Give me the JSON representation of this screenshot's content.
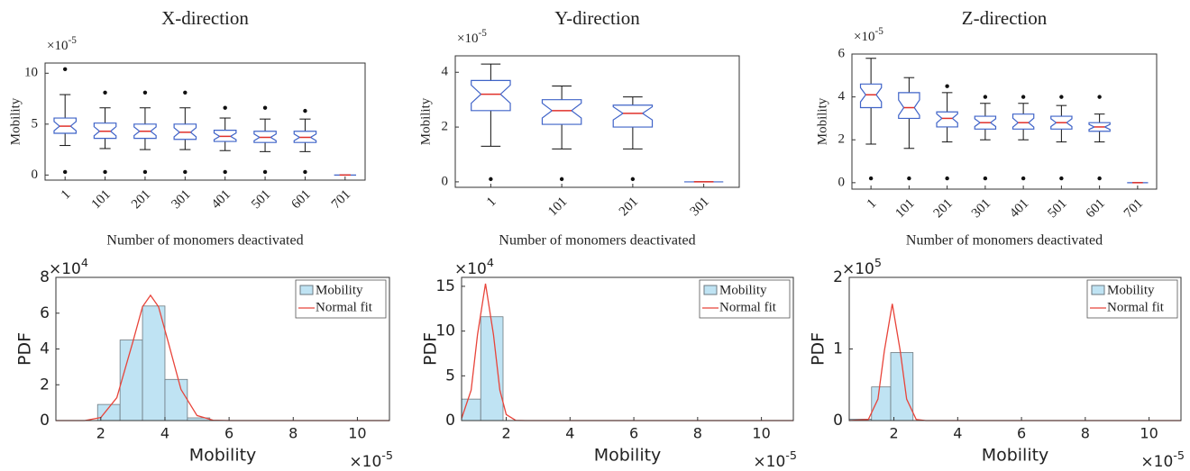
{
  "chart_data": [
    {
      "type": "box",
      "title": "X-direction",
      "xlabel": "Number of monomers deactivated",
      "ylabel": "Mobility",
      "y_scale_label": {
        "base": "×10",
        "exponent": "-5"
      },
      "categories": [
        "1",
        "101",
        "201",
        "301",
        "401",
        "501",
        "601",
        "701"
      ],
      "ylim": [
        -0.5,
        11
      ],
      "yticks": [
        0,
        5,
        10
      ],
      "boxes": [
        {
          "low": 2.9,
          "q1": 4.1,
          "median": 4.8,
          "q3": 5.6,
          "high": 7.9,
          "outliers": [
            10.4,
            0.3
          ]
        },
        {
          "low": 2.6,
          "q1": 3.6,
          "median": 4.3,
          "q3": 5.1,
          "high": 6.6,
          "outliers": [
            8.1,
            0.3
          ]
        },
        {
          "low": 2.5,
          "q1": 3.6,
          "median": 4.3,
          "q3": 5.0,
          "high": 6.6,
          "outliers": [
            8.1,
            0.3
          ]
        },
        {
          "low": 2.5,
          "q1": 3.5,
          "median": 4.2,
          "q3": 5.0,
          "high": 6.6,
          "outliers": [
            8.1,
            0.3
          ]
        },
        {
          "low": 2.4,
          "q1": 3.3,
          "median": 3.8,
          "q3": 4.4,
          "high": 5.6,
          "outliers": [
            6.6,
            0.3
          ]
        },
        {
          "low": 2.3,
          "q1": 3.2,
          "median": 3.7,
          "q3": 4.3,
          "high": 5.5,
          "outliers": [
            6.6,
            0.3
          ]
        },
        {
          "low": 2.3,
          "q1": 3.2,
          "median": 3.7,
          "q3": 4.3,
          "high": 5.5,
          "outliers": [
            6.3,
            0.3
          ]
        },
        {
          "low": 0,
          "q1": 0,
          "median": 0,
          "q3": 0,
          "high": 0,
          "outliers": []
        }
      ],
      "box_color": "#3f63c8",
      "median_color": "#e0302a"
    },
    {
      "type": "box",
      "title": "Y-direction",
      "xlabel": "Number of monomers deactivated",
      "ylabel": "Mobility",
      "y_scale_label": {
        "base": "×10",
        "exponent": "-5"
      },
      "categories": [
        "1",
        "101",
        "201",
        "301"
      ],
      "ylim": [
        -0.2,
        4.6
      ],
      "yticks": [
        0,
        2,
        4
      ],
      "boxes": [
        {
          "low": 1.3,
          "q1": 2.6,
          "median": 3.2,
          "q3": 3.7,
          "high": 4.3,
          "outliers": [
            0.1
          ]
        },
        {
          "low": 1.2,
          "q1": 2.1,
          "median": 2.6,
          "q3": 3.0,
          "high": 3.5,
          "outliers": [
            0.1
          ]
        },
        {
          "low": 1.2,
          "q1": 2.0,
          "median": 2.5,
          "q3": 2.8,
          "high": 3.1,
          "outliers": [
            0.1
          ]
        },
        {
          "low": 0,
          "q1": 0,
          "median": 0,
          "q3": 0,
          "high": 0,
          "outliers": []
        }
      ],
      "box_color": "#3f63c8",
      "median_color": "#e0302a"
    },
    {
      "type": "box",
      "title": "Z-direction",
      "xlabel": "Number of monomers deactivated",
      "ylabel": "Mobility",
      "y_scale_label": {
        "base": "×10",
        "exponent": "-5"
      },
      "categories": [
        "1",
        "101",
        "201",
        "301",
        "401",
        "501",
        "601",
        "701"
      ],
      "ylim": [
        -0.3,
        6
      ],
      "yticks": [
        0,
        2,
        4,
        6
      ],
      "boxes": [
        {
          "low": 1.8,
          "q1": 3.5,
          "median": 4.1,
          "q3": 4.6,
          "high": 5.8,
          "outliers": [
            0.2
          ]
        },
        {
          "low": 1.6,
          "q1": 3.0,
          "median": 3.5,
          "q3": 4.2,
          "high": 4.9,
          "outliers": [
            0.2
          ]
        },
        {
          "low": 1.9,
          "q1": 2.6,
          "median": 3.0,
          "q3": 3.3,
          "high": 4.2,
          "outliers": [
            4.5,
            0.2
          ]
        },
        {
          "low": 2.0,
          "q1": 2.5,
          "median": 2.8,
          "q3": 3.1,
          "high": 3.7,
          "outliers": [
            4.0,
            0.2
          ]
        },
        {
          "low": 2.0,
          "q1": 2.5,
          "median": 2.8,
          "q3": 3.2,
          "high": 3.7,
          "outliers": [
            4.0,
            0.2
          ]
        },
        {
          "low": 1.9,
          "q1": 2.5,
          "median": 2.8,
          "q3": 3.1,
          "high": 3.6,
          "outliers": [
            4.0,
            0.2
          ]
        },
        {
          "low": 1.9,
          "q1": 2.4,
          "median": 2.6,
          "q3": 2.8,
          "high": 3.2,
          "outliers": [
            4.0,
            0.2
          ]
        },
        {
          "low": 0,
          "q1": 0,
          "median": 0,
          "q3": 0,
          "high": 0,
          "outliers": []
        }
      ],
      "box_color": "#3f63c8",
      "median_color": "#e0302a"
    },
    {
      "type": "histogram",
      "xlabel": "Mobility",
      "ylabel": "PDF",
      "bars_name": "Mobility",
      "color": "#bfe3f3",
      "x_scale_label": {
        "base": "×10",
        "exponent": "-5"
      },
      "y_scale_label": {
        "base": "×10",
        "exponent": "4"
      },
      "bins": [
        1.9,
        2.6,
        3.3,
        4.0,
        4.7,
        5.4
      ],
      "counts": [
        0.9,
        4.5,
        6.4,
        2.3,
        0.15
      ],
      "series": [
        {
          "name": "Normal fit",
          "color": "#e8443a",
          "x": [
            0.6,
            1.5,
            2.0,
            2.5,
            3.0,
            3.3,
            3.55,
            3.8,
            4.1,
            4.5,
            5.0,
            5.5,
            6.0,
            11
          ],
          "values": [
            0,
            0,
            0.17,
            1.28,
            4.4,
            6.36,
            7.0,
            6.36,
            4.4,
            1.74,
            0.28,
            0.02,
            0,
            0
          ]
        }
      ],
      "xlim": [
        0.6,
        11
      ],
      "ylim": [
        0,
        8
      ],
      "xticks": [
        2,
        4,
        6,
        8,
        10
      ],
      "yticks": [
        0,
        2,
        4,
        6,
        8
      ],
      "legend": "upper right"
    },
    {
      "type": "histogram",
      "xlabel": "Mobility",
      "ylabel": "PDF",
      "bars_name": "Mobility",
      "color": "#bfe3f3",
      "x_scale_label": {
        "base": "×10",
        "exponent": "-5"
      },
      "y_scale_label": {
        "base": "×10",
        "exponent": "4"
      },
      "bins": [
        0.6,
        1.2,
        1.9
      ],
      "counts": [
        2.4,
        11.6
      ],
      "series": [
        {
          "name": "Normal fit",
          "color": "#e8443a",
          "x": [
            0.6,
            0.9,
            1.1,
            1.35,
            1.6,
            1.8,
            2.0,
            2.3,
            2.6,
            11
          ],
          "values": [
            0.24,
            3.4,
            9.6,
            15.3,
            9.6,
            3.4,
            0.67,
            0.02,
            0,
            0
          ]
        }
      ],
      "xlim": [
        0.6,
        11
      ],
      "ylim": [
        0,
        16
      ],
      "xticks": [
        2,
        4,
        6,
        8,
        10
      ],
      "yticks": [
        0,
        5,
        10,
        15
      ],
      "legend": "upper right"
    },
    {
      "type": "histogram",
      "xlabel": "Mobility",
      "ylabel": "PDF",
      "bars_name": "Mobility",
      "color": "#bfe3f3",
      "x_scale_label": {
        "base": "×10",
        "exponent": "-5"
      },
      "y_scale_label": {
        "base": "×10",
        "exponent": "5"
      },
      "bins": [
        0.6,
        1.3,
        1.9,
        2.6
      ],
      "counts": [
        0.02,
        0.47,
        0.95
      ],
      "series": [
        {
          "name": "Normal fit",
          "color": "#e8443a",
          "x": [
            0.6,
            1.2,
            1.5,
            1.7,
            1.95,
            2.2,
            2.4,
            2.7,
            3.0,
            11
          ],
          "values": [
            0,
            0.015,
            0.3,
            0.97,
            1.63,
            0.97,
            0.3,
            0.015,
            0,
            0
          ]
        }
      ],
      "xlim": [
        0.6,
        11
      ],
      "ylim": [
        0,
        2
      ],
      "xticks": [
        2,
        4,
        6,
        8,
        10
      ],
      "yticks": [
        0,
        1,
        2
      ],
      "legend": "upper right"
    }
  ]
}
